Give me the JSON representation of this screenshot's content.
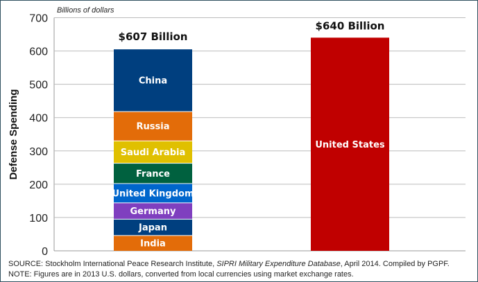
{
  "chart_data": {
    "type": "stacked-bar",
    "unit_label": "Billions of dollars",
    "ylabel": "Defense Spending",
    "ylim": [
      0,
      700
    ],
    "yticks": [
      0,
      100,
      200,
      300,
      400,
      500,
      600,
      700
    ],
    "grid": true,
    "bars": [
      {
        "total_label": "$607 Billion",
        "total": 607,
        "segments": [
          {
            "name": "India",
            "value": 47,
            "color": "#e36c09"
          },
          {
            "name": "Japan",
            "value": 49,
            "color": "#003f7f"
          },
          {
            "name": "Germany",
            "value": 49,
            "color": "#7f3fbf"
          },
          {
            "name": "United Kingdom",
            "value": 58,
            "color": "#0066cc"
          },
          {
            "name": "France",
            "value": 61,
            "color": "#00613f"
          },
          {
            "name": "Saudi Arabia",
            "value": 67,
            "color": "#e0c000"
          },
          {
            "name": "Russia",
            "value": 88,
            "color": "#e36c09"
          },
          {
            "name": "China",
            "value": 188,
            "color": "#003f7f"
          }
        ]
      },
      {
        "total_label": "$640 Billion",
        "total": 640,
        "segments": [
          {
            "name": "United States",
            "value": 640,
            "color": "#c00000"
          }
        ]
      }
    ]
  },
  "source": {
    "prefix": "SOURCE: Stockholm International Peace Research Institute, ",
    "title": "SIPRI Military Expenditure Database",
    "suffix": ", April 2014. Compiled by PGPF."
  },
  "note": "NOTE: Figures are in 2013 U.S. dollars, converted from local currencies using market exchange rates."
}
